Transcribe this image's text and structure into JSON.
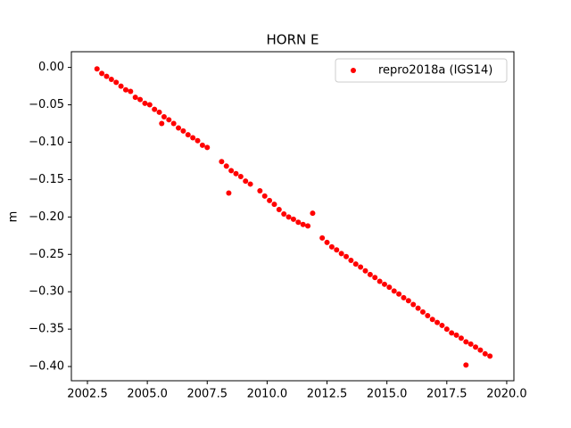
{
  "chart_data": {
    "type": "scatter",
    "title": "HORN E",
    "ylabel": "m",
    "series": [
      {
        "name": "repro2018a (IGS14)",
        "color": "#ff0000",
        "x": [
          2002.9,
          2003.1,
          2003.3,
          2003.5,
          2003.7,
          2003.9,
          2004.1,
          2004.3,
          2004.5,
          2004.7,
          2004.9,
          2005.1,
          2005.3,
          2005.5,
          2005.6,
          2005.7,
          2005.9,
          2006.1,
          2006.3,
          2006.5,
          2006.7,
          2006.9,
          2007.1,
          2007.3,
          2007.5,
          2008.1,
          2008.3,
          2008.4,
          2008.5,
          2008.7,
          2008.9,
          2009.1,
          2009.3,
          2009.7,
          2009.9,
          2010.1,
          2010.3,
          2010.5,
          2010.7,
          2010.9,
          2011.1,
          2011.3,
          2011.5,
          2011.7,
          2011.9,
          2012.3,
          2012.5,
          2012.7,
          2012.9,
          2013.1,
          2013.3,
          2013.5,
          2013.7,
          2013.9,
          2014.1,
          2014.3,
          2014.5,
          2014.7,
          2014.9,
          2015.1,
          2015.3,
          2015.5,
          2015.7,
          2015.9,
          2016.1,
          2016.3,
          2016.5,
          2016.7,
          2016.9,
          2017.1,
          2017.3,
          2017.5,
          2017.7,
          2017.9,
          2018.1,
          2018.3,
          2018.3,
          2018.5,
          2018.7,
          2018.9,
          2019.1,
          2019.3
        ],
        "values": [
          -0.002,
          -0.008,
          -0.012,
          -0.016,
          -0.02,
          -0.025,
          -0.03,
          -0.032,
          -0.04,
          -0.043,
          -0.048,
          -0.05,
          -0.056,
          -0.06,
          -0.075,
          -0.066,
          -0.07,
          -0.075,
          -0.081,
          -0.085,
          -0.09,
          -0.094,
          -0.098,
          -0.104,
          -0.107,
          -0.126,
          -0.132,
          -0.168,
          -0.138,
          -0.142,
          -0.146,
          -0.152,
          -0.156,
          -0.165,
          -0.172,
          -0.178,
          -0.183,
          -0.19,
          -0.196,
          -0.2,
          -0.203,
          -0.207,
          -0.21,
          -0.212,
          -0.195,
          -0.228,
          -0.234,
          -0.24,
          -0.244,
          -0.249,
          -0.253,
          -0.258,
          -0.263,
          -0.267,
          -0.272,
          -0.277,
          -0.281,
          -0.286,
          -0.29,
          -0.294,
          -0.299,
          -0.303,
          -0.308,
          -0.312,
          -0.317,
          -0.322,
          -0.327,
          -0.332,
          -0.337,
          -0.341,
          -0.345,
          -0.35,
          -0.355,
          -0.358,
          -0.362,
          -0.367,
          -0.398,
          -0.37,
          -0.374,
          -0.378,
          -0.383,
          -0.386
        ]
      }
    ],
    "xlim": [
      2001.83,
      2020.3
    ],
    "ylim": [
      -0.419,
      0.021
    ],
    "xticks": [
      2002.5,
      {
        "value": 2005,
        "label": "2005.0"
      },
      2007.5,
      {
        "value": 2010,
        "label": "2010.0"
      },
      2012.5,
      {
        "value": 2015,
        "label": "2015.0"
      },
      2017.5,
      {
        "value": 2020,
        "label": "2020.0"
      }
    ],
    "yticks": [
      {
        "value": 0,
        "label": "0.00"
      },
      {
        "value": -0.05,
        "label": "−0.05"
      },
      {
        "value": -0.1,
        "label": "−0.10"
      },
      {
        "value": -0.15,
        "label": "−0.15"
      },
      {
        "value": -0.2,
        "label": "−0.20"
      },
      {
        "value": -0.25,
        "label": "−0.25"
      },
      {
        "value": -0.3,
        "label": "−0.30"
      },
      {
        "value": -0.35,
        "label": "−0.35"
      },
      {
        "value": -0.4,
        "label": "−0.40"
      }
    ],
    "legend": "upper right",
    "grid": false
  }
}
